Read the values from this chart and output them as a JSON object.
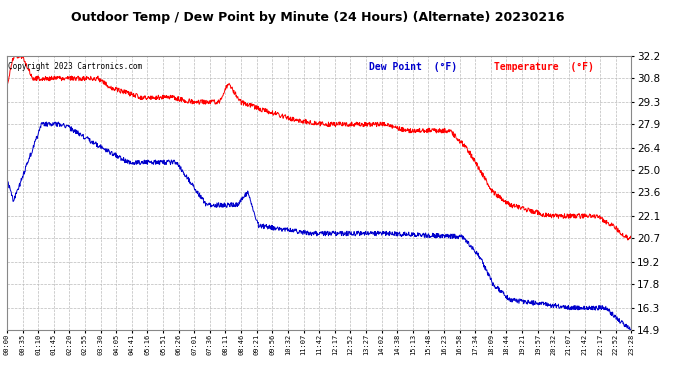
{
  "title": "Outdoor Temp / Dew Point by Minute (24 Hours) (Alternate) 20230216",
  "copyright": "Copyright 2023 Cartronics.com",
  "legend_dew": "Dew Point  (°F)",
  "legend_temp": "Temperature  (°F)",
  "y_ticks": [
    14.9,
    16.3,
    17.8,
    19.2,
    20.7,
    22.1,
    23.6,
    25.0,
    26.4,
    27.9,
    29.3,
    30.8,
    32.2
  ],
  "y_min": 14.9,
  "y_max": 32.2,
  "bg_color": "#ffffff",
  "plot_bg_color": "#ffffff",
  "grid_color": "#bbbbbb",
  "temp_color": "#ff0000",
  "dew_color": "#0000cc",
  "title_color": "#000000",
  "copyright_color": "#000000",
  "x_tick_labels": [
    "00:00",
    "00:35",
    "01:10",
    "01:45",
    "02:20",
    "02:55",
    "03:30",
    "04:05",
    "04:41",
    "05:16",
    "05:51",
    "06:26",
    "07:01",
    "07:36",
    "08:11",
    "08:46",
    "09:21",
    "09:56",
    "10:32",
    "11:07",
    "11:42",
    "12:17",
    "12:52",
    "13:27",
    "14:02",
    "14:38",
    "15:13",
    "15:48",
    "16:23",
    "16:58",
    "17:34",
    "18:09",
    "18:44",
    "19:21",
    "19:57",
    "20:32",
    "21:07",
    "21:42",
    "22:17",
    "22:52",
    "23:28"
  ],
  "n_minutes": 1440
}
